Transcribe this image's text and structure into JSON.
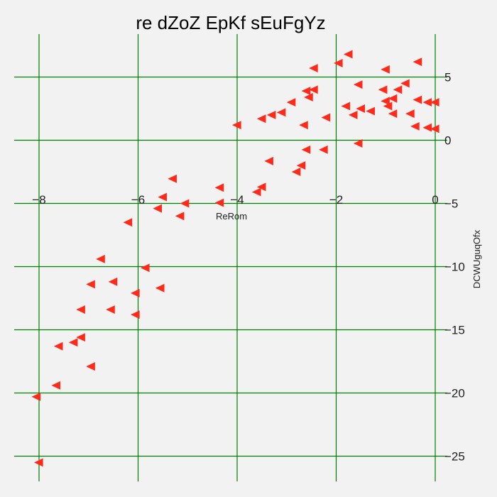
{
  "chart_data": {
    "type": "scatter",
    "title": "re dZoZ EpKf  sEuFgYz",
    "xlabel": "ReRom",
    "ylabel": "DCWUguqOfx",
    "xlim": [
      -8.5,
      0.1
    ],
    "ylim": [
      -27,
      8
    ],
    "x_ticks": [
      -8,
      -6,
      -4,
      -2,
      0
    ],
    "x_tick_labels": [
      "−8",
      "−6",
      "−4",
      "−2",
      "0"
    ],
    "y_ticks": [
      5,
      0,
      -5,
      -10,
      -15,
      -20,
      -25
    ],
    "y_tick_labels": [
      "5",
      "0",
      "−5",
      "−10",
      "−15",
      "−20",
      "−25"
    ],
    "grid": true,
    "grid_color": "#008000",
    "marker": "triangle-left",
    "marker_color": "#ff2a1a",
    "background": "#f2f2f2",
    "points": [
      [
        -1.75,
        6.8
      ],
      [
        -1.95,
        6.1
      ],
      [
        -0.35,
        6.2
      ],
      [
        -2.45,
        5.7
      ],
      [
        -1.0,
        5.6
      ],
      [
        -1.55,
        4.4
      ],
      [
        -0.6,
        4.5
      ],
      [
        -1.05,
        4.0
      ],
      [
        -0.75,
        4.0
      ],
      [
        -2.45,
        4.0
      ],
      [
        -2.6,
        3.9
      ],
      [
        -2.55,
        3.4
      ],
      [
        -0.85,
        3.3
      ],
      [
        -1.0,
        3.1
      ],
      [
        -0.35,
        3.2
      ],
      [
        -0.15,
        3.0
      ],
      [
        0.0,
        3.0
      ],
      [
        -2.9,
        3.0
      ],
      [
        -0.95,
        2.7
      ],
      [
        -1.8,
        2.7
      ],
      [
        -1.5,
        2.5
      ],
      [
        -1.3,
        2.3
      ],
      [
        -0.85,
        2.1
      ],
      [
        -0.5,
        2.1
      ],
      [
        -1.65,
        2.0
      ],
      [
        -3.1,
        2.2
      ],
      [
        -3.3,
        2.0
      ],
      [
        -3.5,
        1.7
      ],
      [
        -2.2,
        1.8
      ],
      [
        -2.65,
        1.2
      ],
      [
        -4.0,
        1.2
      ],
      [
        -0.4,
        1.1
      ],
      [
        -0.15,
        1.0
      ],
      [
        0.0,
        0.9
      ],
      [
        -1.55,
        -0.25
      ],
      [
        -2.6,
        -0.75
      ],
      [
        -2.25,
        -0.75
      ],
      [
        -3.35,
        -1.65
      ],
      [
        -2.7,
        -2.0
      ],
      [
        -2.8,
        -2.5
      ],
      [
        -5.3,
        -3.05
      ],
      [
        -4.35,
        -3.75
      ],
      [
        -3.5,
        -3.7
      ],
      [
        -3.6,
        -4.1
      ],
      [
        -5.5,
        -4.5
      ],
      [
        -5.05,
        -5.0
      ],
      [
        -4.35,
        -4.95
      ],
      [
        -5.6,
        -5.4
      ],
      [
        -5.15,
        -6.0
      ],
      [
        -6.2,
        -6.5
      ],
      [
        -6.75,
        -9.4
      ],
      [
        -5.85,
        -10.1
      ],
      [
        -6.95,
        -11.4
      ],
      [
        -6.5,
        -11.2
      ],
      [
        -5.55,
        -11.7
      ],
      [
        -6.05,
        -12.1
      ],
      [
        -7.15,
        -13.4
      ],
      [
        -6.55,
        -13.4
      ],
      [
        -6.05,
        -13.8
      ],
      [
        -7.15,
        -15.6
      ],
      [
        -7.3,
        -16.0
      ],
      [
        -7.6,
        -16.3
      ],
      [
        -6.95,
        -17.9
      ],
      [
        -7.65,
        -19.4
      ],
      [
        -8.05,
        -20.3
      ],
      [
        -8.0,
        -25.5
      ]
    ]
  }
}
